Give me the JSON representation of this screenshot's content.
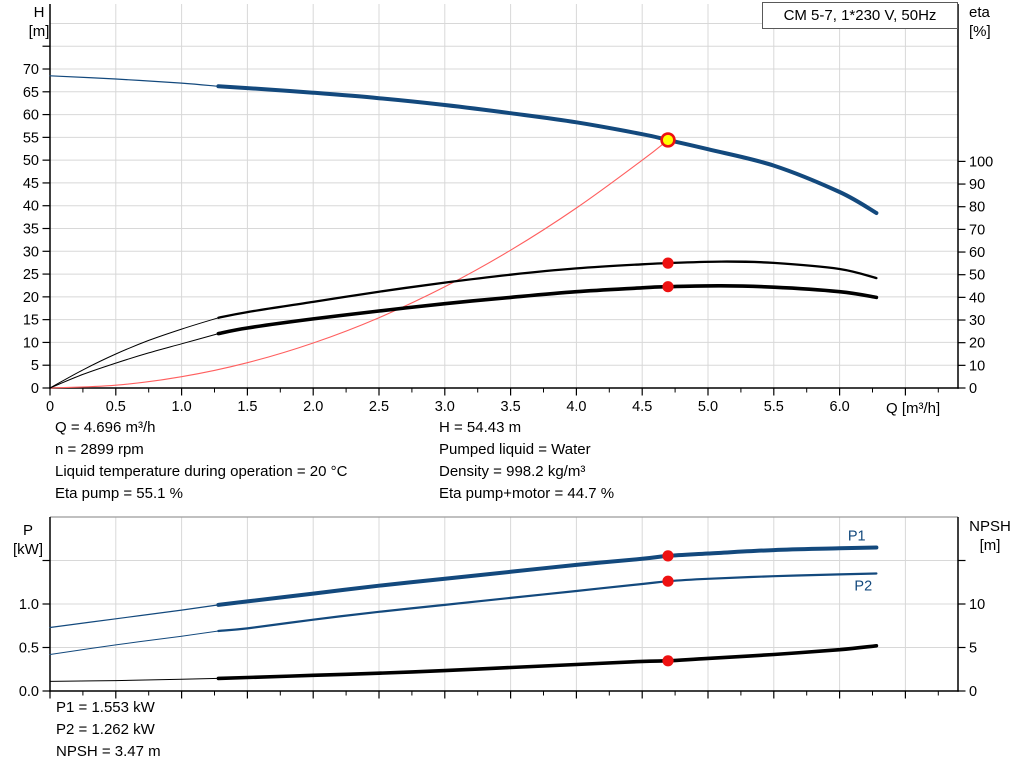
{
  "title_box": {
    "label": "CM 5-7, 1*230 V, 50Hz"
  },
  "colors": {
    "blue": "#13497d",
    "black": "#000000",
    "red_curve": "#ff5f5f",
    "red_marker": "#ee1111",
    "yellow": "#ffff00",
    "grid": "#d8d8d8",
    "axis": "#000000",
    "plot_top_border": "#9a9a9a"
  },
  "top_info": {
    "left": [
      "Q = 4.696 m³/h",
      "n = 2899 rpm",
      "Liquid temperature during operation = 20 °C",
      "Eta pump = 55.1 %"
    ],
    "right": [
      "H = 54.43 m",
      "Pumped liquid = Water",
      "Density = 998.2 kg/m³",
      "Eta pump+motor = 44.7 %"
    ]
  },
  "bottom_info": [
    "P1 = 1.553 kW",
    "P2 = 1.262 kW",
    "NPSH = 3.47 m"
  ],
  "chart_data": [
    {
      "id": "head-efficiency-chart",
      "type": "line",
      "x_axis": {
        "label": "Q [m³/h]",
        "min": 0,
        "max": 6.9,
        "labeled_ticks": [
          {
            "v": 0,
            "t": "0"
          },
          {
            "v": 0.5,
            "t": "0.5"
          },
          {
            "v": 1,
            "t": "1.0"
          },
          {
            "v": 1.5,
            "t": "1.5"
          },
          {
            "v": 2,
            "t": "2.0"
          },
          {
            "v": 2.5,
            "t": "2.5"
          },
          {
            "v": 3,
            "t": "3.0"
          },
          {
            "v": 3.5,
            "t": "3.5"
          },
          {
            "v": 4,
            "t": "4.0"
          },
          {
            "v": 4.5,
            "t": "4.5"
          },
          {
            "v": 5,
            "t": "5.0"
          },
          {
            "v": 5.5,
            "t": "5.5"
          },
          {
            "v": 6,
            "t": "6.0"
          }
        ],
        "unlabeled_ticks": [
          6.5
        ],
        "minor_ticks": [
          0.25,
          0.75,
          1.25,
          1.75,
          2.25,
          2.75,
          3.25,
          3.75,
          4.25,
          4.75,
          5.25,
          5.75,
          6.25,
          6.75
        ]
      },
      "y_left": {
        "title": "H",
        "unit": "[m]",
        "min": 0,
        "max": 84,
        "labeled_ticks": [
          {
            "v": 0,
            "t": "0"
          },
          {
            "v": 5,
            "t": "5"
          },
          {
            "v": 10,
            "t": "10"
          },
          {
            "v": 15,
            "t": "15"
          },
          {
            "v": 20,
            "t": "20"
          },
          {
            "v": 25,
            "t": "25"
          },
          {
            "v": 30,
            "t": "30"
          },
          {
            "v": 35,
            "t": "35"
          },
          {
            "v": 40,
            "t": "40"
          },
          {
            "v": 45,
            "t": "45"
          },
          {
            "v": 50,
            "t": "50"
          },
          {
            "v": 55,
            "t": "55"
          },
          {
            "v": 60,
            "t": "60"
          },
          {
            "v": 65,
            "t": "65"
          },
          {
            "v": 70,
            "t": "70"
          }
        ],
        "unlabeled_ticks": [
          75
        ],
        "grid_extra": [
          80
        ]
      },
      "y_right": {
        "title": "eta",
        "unit": "[%]",
        "min": 0,
        "max": 100,
        "labeled_ticks": [
          {
            "v": 0,
            "t": "0"
          },
          {
            "v": 10,
            "t": "10"
          },
          {
            "v": 20,
            "t": "20"
          },
          {
            "v": 30,
            "t": "30"
          },
          {
            "v": 40,
            "t": "40"
          },
          {
            "v": 50,
            "t": "50"
          },
          {
            "v": 60,
            "t": "60"
          },
          {
            "v": 70,
            "t": "70"
          },
          {
            "v": 80,
            "t": "80"
          },
          {
            "v": 90,
            "t": "90"
          },
          {
            "v": 100,
            "t": "100"
          }
        ],
        "unlabeled_ticks": [],
        "grid": false
      },
      "series": [
        {
          "name": "h-curve",
          "axis": "left",
          "color": "blue",
          "width": 4,
          "thin_until": 1.28,
          "thin_width": 1.2,
          "points": [
            [
              0,
              68.5
            ],
            [
              0.5,
              67.8
            ],
            [
              1,
              66.9
            ],
            [
              1.28,
              66.2
            ],
            [
              1.5,
              65.8
            ],
            [
              2,
              64.8
            ],
            [
              2.5,
              63.6
            ],
            [
              3,
              62.1
            ],
            [
              3.5,
              60.3
            ],
            [
              4,
              58.3
            ],
            [
              4.5,
              55.7
            ],
            [
              4.696,
              54.43
            ],
            [
              5,
              52.4
            ],
            [
              5.5,
              48.8
            ],
            [
              6,
              43.0
            ],
            [
              6.28,
              38.4
            ]
          ]
        },
        {
          "name": "system-curve",
          "axis": "left",
          "color": "red_curve",
          "width": 1.1,
          "points": [
            [
              0,
              0
            ],
            [
              0.5,
              0.62
            ],
            [
              1,
              2.47
            ],
            [
              1.5,
              5.55
            ],
            [
              2,
              9.87
            ],
            [
              2.5,
              15.43
            ],
            [
              3,
              22.21
            ],
            [
              3.5,
              30.24
            ],
            [
              4,
              39.49
            ],
            [
              4.5,
              49.98
            ],
            [
              4.696,
              54.43
            ]
          ]
        },
        {
          "name": "eta-pump-curve",
          "axis": "right",
          "color": "black",
          "width": 2.3,
          "thin_until": 1.28,
          "thin_width": 1,
          "points": [
            [
              0,
              0
            ],
            [
              0.25,
              8
            ],
            [
              0.5,
              15
            ],
            [
              0.75,
              21
            ],
            [
              1,
              26
            ],
            [
              1.28,
              31
            ],
            [
              1.5,
              33.5
            ],
            [
              2,
              38
            ],
            [
              2.5,
              42.5
            ],
            [
              3,
              46.5
            ],
            [
              3.5,
              50
            ],
            [
              4,
              52.8
            ],
            [
              4.5,
              54.6
            ],
            [
              4.696,
              55.1
            ],
            [
              5.1,
              55.8
            ],
            [
              5.5,
              55.2
            ],
            [
              6,
              52.5
            ],
            [
              6.28,
              48.5
            ]
          ]
        },
        {
          "name": "eta-pump-motor-curve",
          "axis": "right",
          "color": "black",
          "width": 3.6,
          "thin_until": 1.28,
          "thin_width": 1,
          "points": [
            [
              0,
              0
            ],
            [
              0.25,
              6
            ],
            [
              0.5,
              11
            ],
            [
              0.75,
              15.5
            ],
            [
              1,
              19.5
            ],
            [
              1.28,
              24
            ],
            [
              1.5,
              26.5
            ],
            [
              2,
              30.5
            ],
            [
              2.5,
              34
            ],
            [
              3,
              37.2
            ],
            [
              3.5,
              40
            ],
            [
              4,
              42.5
            ],
            [
              4.5,
              44.2
            ],
            [
              4.696,
              44.7
            ],
            [
              5.1,
              45.1
            ],
            [
              5.5,
              44.5
            ],
            [
              6,
              42.5
            ],
            [
              6.28,
              40
            ]
          ]
        }
      ],
      "markers": [
        {
          "name": "duty-point",
          "q": 4.696,
          "v": 54.43,
          "axis": "left",
          "style": "duty"
        },
        {
          "name": "eta-pump-point",
          "q": 4.696,
          "v": 55.1,
          "axis": "right",
          "style": "dot"
        },
        {
          "name": "eta-pump-motor-point",
          "q": 4.696,
          "v": 44.7,
          "axis": "right",
          "style": "dot"
        }
      ],
      "labels": []
    },
    {
      "id": "power-npsh-chart",
      "type": "line",
      "x_axis": {
        "label": "",
        "min": 0,
        "max": 6.9,
        "labeled_ticks": [],
        "unlabeled_ticks": [
          0,
          0.5,
          1,
          1.5,
          2,
          2.5,
          3,
          3.5,
          4,
          4.5,
          5,
          5.5,
          6,
          6.5
        ],
        "minor_ticks": [
          0.25,
          0.75,
          1.25,
          1.75,
          2.25,
          2.75,
          3.25,
          3.75,
          4.25,
          4.75,
          5.25,
          5.75,
          6.25,
          6.75
        ]
      },
      "y_left": {
        "title": "P",
        "unit": "[kW]",
        "min": 0,
        "max": 2,
        "labeled_ticks": [
          {
            "v": 0,
            "t": "0.0"
          },
          {
            "v": 0.5,
            "t": "0.5"
          },
          {
            "v": 1,
            "t": "1.0"
          }
        ],
        "unlabeled_ticks": [
          1.5
        ],
        "grid_extra": []
      },
      "y_right": {
        "title": "NPSH",
        "unit": "[m]",
        "min": 0,
        "max": 20,
        "labeled_ticks": [
          {
            "v": 0,
            "t": "0"
          },
          {
            "v": 5,
            "t": "5"
          },
          {
            "v": 10,
            "t": "10"
          }
        ],
        "unlabeled_ticks": [
          15
        ],
        "grid": false
      },
      "series": [
        {
          "name": "p1-curve",
          "axis": "left",
          "color": "blue",
          "width": 4,
          "thin_until": 1.28,
          "thin_width": 1.2,
          "points": [
            [
              0,
              0.73
            ],
            [
              0.5,
              0.83
            ],
            [
              1,
              0.93
            ],
            [
              1.28,
              0.99
            ],
            [
              1.5,
              1.03
            ],
            [
              2,
              1.12
            ],
            [
              2.5,
              1.21
            ],
            [
              3,
              1.29
            ],
            [
              3.5,
              1.37
            ],
            [
              4,
              1.45
            ],
            [
              4.5,
              1.52
            ],
            [
              4.696,
              1.553
            ],
            [
              5,
              1.58
            ],
            [
              5.5,
              1.62
            ],
            [
              6,
              1.64
            ],
            [
              6.28,
              1.65
            ]
          ]
        },
        {
          "name": "p2-curve",
          "axis": "left",
          "color": "blue",
          "width": 2.2,
          "thin_until": 1.28,
          "thin_width": 1,
          "points": [
            [
              0,
              0.42
            ],
            [
              0.5,
              0.53
            ],
            [
              1,
              0.63
            ],
            [
              1.28,
              0.69
            ],
            [
              1.5,
              0.72
            ],
            [
              2,
              0.82
            ],
            [
              2.5,
              0.91
            ],
            [
              3,
              0.99
            ],
            [
              3.5,
              1.07
            ],
            [
              4,
              1.15
            ],
            [
              4.5,
              1.23
            ],
            [
              4.696,
              1.262
            ],
            [
              5,
              1.29
            ],
            [
              5.5,
              1.32
            ],
            [
              6,
              1.34
            ],
            [
              6.28,
              1.35
            ]
          ]
        },
        {
          "name": "npsh-curve",
          "axis": "right",
          "color": "black",
          "width": 3.6,
          "thin_until": 1.28,
          "thin_width": 1,
          "points": [
            [
              0,
              1.1
            ],
            [
              0.5,
              1.2
            ],
            [
              1,
              1.35
            ],
            [
              1.28,
              1.45
            ],
            [
              1.5,
              1.55
            ],
            [
              2,
              1.8
            ],
            [
              2.5,
              2.05
            ],
            [
              3,
              2.35
            ],
            [
              3.5,
              2.7
            ],
            [
              4,
              3.05
            ],
            [
              4.5,
              3.4
            ],
            [
              4.696,
              3.47
            ],
            [
              5,
              3.75
            ],
            [
              5.5,
              4.2
            ],
            [
              6,
              4.75
            ],
            [
              6.28,
              5.2
            ]
          ]
        }
      ],
      "markers": [
        {
          "name": "p1-point",
          "q": 4.696,
          "v": 1.553,
          "axis": "left",
          "style": "dot"
        },
        {
          "name": "p2-point",
          "q": 4.696,
          "v": 1.262,
          "axis": "left",
          "style": "dot"
        },
        {
          "name": "npsh-point",
          "q": 4.696,
          "v": 3.47,
          "axis": "right",
          "style": "dot"
        }
      ],
      "labels": [
        {
          "text": "P1",
          "q": 6.13,
          "v": 1.79,
          "axis": "left"
        },
        {
          "text": "P2",
          "q": 6.18,
          "v": 1.21,
          "axis": "left"
        }
      ]
    }
  ]
}
